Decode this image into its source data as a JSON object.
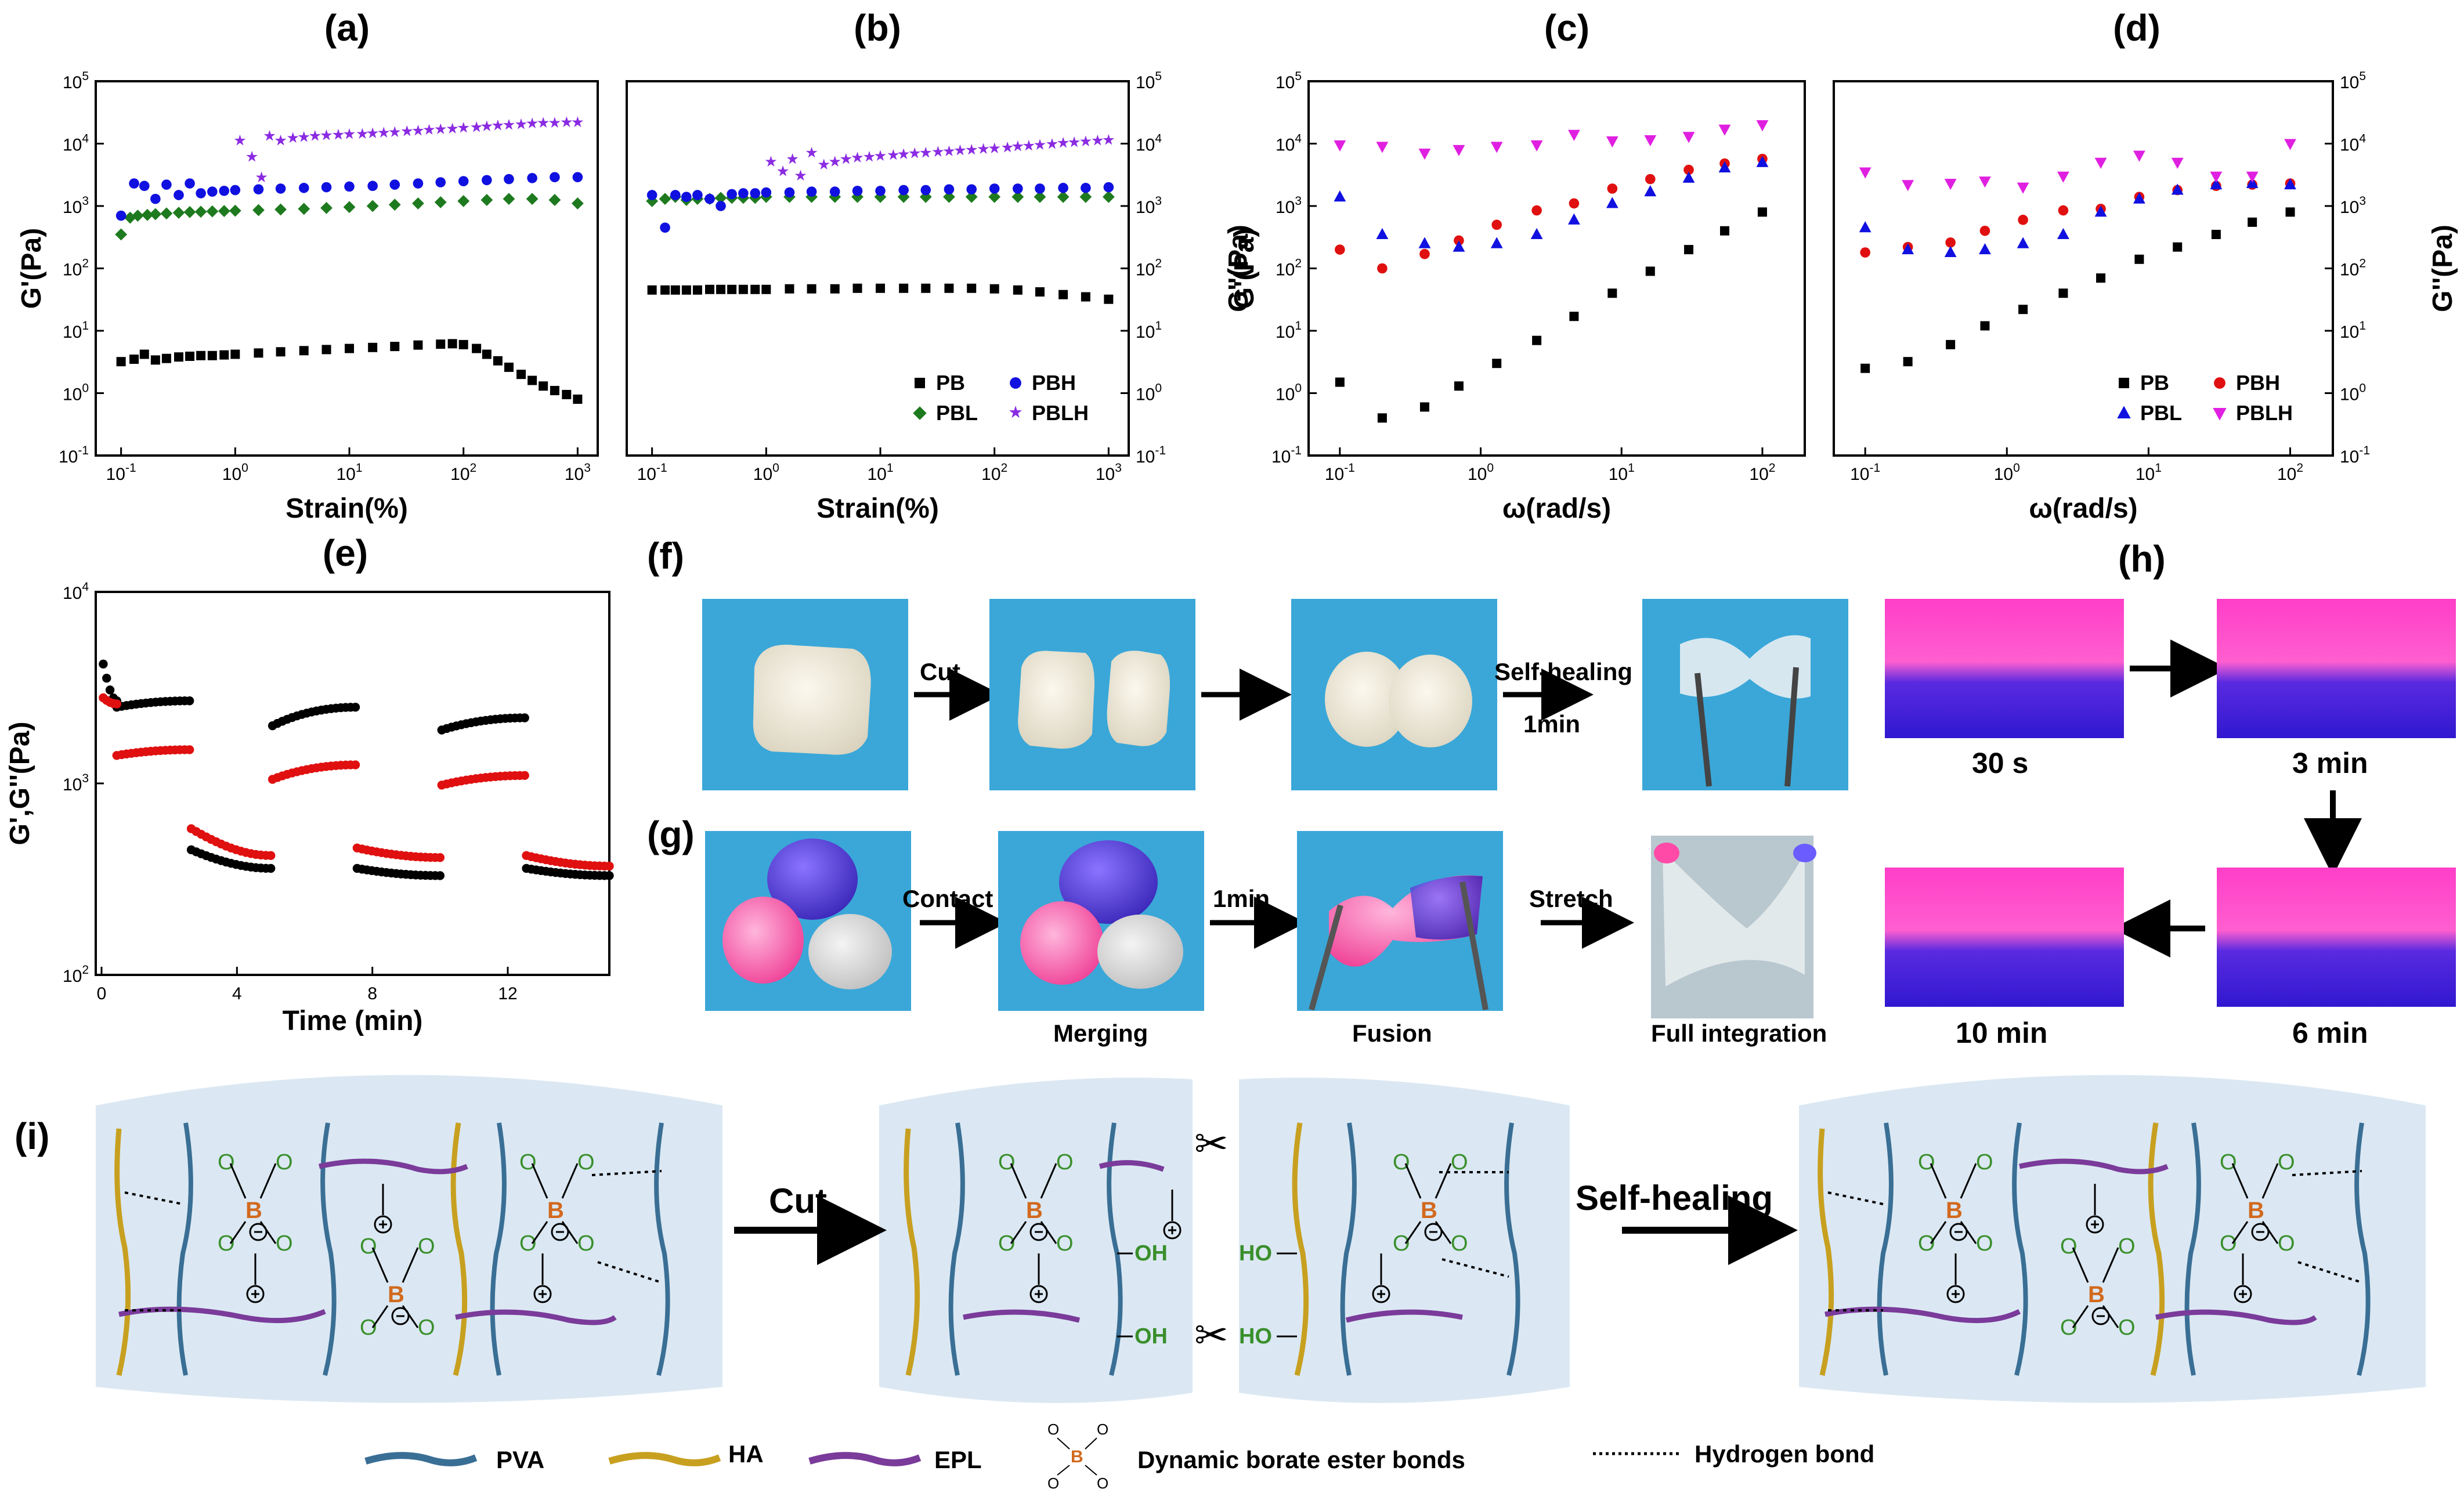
{
  "chart_data": [
    {
      "id": "a",
      "type": "scatter",
      "title": "(a)",
      "xlabel": "Strain(%)",
      "ylabel": "G'(Pa)",
      "xscale": "log",
      "yscale": "log",
      "xlim": [
        0.06,
        1500
      ],
      "ylim": [
        0.1,
        100000
      ],
      "xticks": [
        "10",
        "10",
        "10",
        "10",
        "10"
      ],
      "xtick_exp": [
        "-1",
        "0",
        "1",
        "2",
        "3"
      ],
      "yticks": [
        "10",
        "10",
        "10",
        "10",
        "10",
        "10",
        "10"
      ],
      "ytick_exp": [
        "-1",
        "0",
        "1",
        "2",
        "3",
        "4",
        "5"
      ],
      "series": [
        {
          "name": "PB",
          "marker": "square",
          "color": "#000000",
          "x": [
            0.1,
            0.13,
            0.16,
            0.2,
            0.25,
            0.32,
            0.4,
            0.5,
            0.63,
            0.8,
            1,
            1.6,
            2.5,
            4,
            6.3,
            10,
            16,
            25,
            40,
            63,
            80,
            100,
            130,
            160,
            200,
            250,
            320,
            400,
            500,
            630,
            800,
            1000
          ],
          "y": [
            3.2,
            3.5,
            4.2,
            3.4,
            3.6,
            3.8,
            3.9,
            4.0,
            4.0,
            4.1,
            4.2,
            4.4,
            4.6,
            4.8,
            5.0,
            5.2,
            5.4,
            5.6,
            5.9,
            6.1,
            6.2,
            6.0,
            5.2,
            4.2,
            3.3,
            2.6,
            2.0,
            1.6,
            1.3,
            1.1,
            0.95,
            0.8
          ]
        },
        {
          "name": "PBL",
          "marker": "diamond",
          "color": "#1e7a1e",
          "x": [
            0.1,
            0.12,
            0.14,
            0.17,
            0.2,
            0.25,
            0.32,
            0.4,
            0.5,
            0.63,
            0.8,
            1,
            1.6,
            2.5,
            4,
            6.3,
            10,
            16,
            25,
            40,
            63,
            100,
            160,
            250,
            400,
            630,
            1000
          ],
          "y": [
            350,
            650,
            700,
            720,
            740,
            760,
            780,
            800,
            810,
            820,
            830,
            840,
            860,
            880,
            900,
            930,
            960,
            1000,
            1050,
            1100,
            1150,
            1200,
            1250,
            1300,
            1300,
            1250,
            1100
          ]
        },
        {
          "name": "PBH",
          "marker": "circle",
          "color": "#1010e0",
          "x": [
            0.1,
            0.13,
            0.16,
            0.2,
            0.25,
            0.32,
            0.4,
            0.5,
            0.63,
            0.8,
            1,
            1.6,
            2.5,
            4,
            6.3,
            10,
            16,
            25,
            40,
            63,
            100,
            160,
            250,
            400,
            630,
            1000
          ],
          "y": [
            700,
            2300,
            2100,
            1300,
            2200,
            1500,
            2300,
            1600,
            1700,
            1750,
            1800,
            1850,
            1900,
            1950,
            2000,
            2050,
            2100,
            2200,
            2300,
            2400,
            2500,
            2600,
            2700,
            2800,
            2900,
            2900
          ]
        },
        {
          "name": "PBLH",
          "marker": "star",
          "color": "#8a2be2",
          "x": [
            1.1,
            1.4,
            1.7,
            2,
            2.5,
            3.2,
            4,
            5,
            6.3,
            8,
            10,
            13,
            16,
            20,
            25,
            32,
            40,
            50,
            63,
            80,
            100,
            130,
            160,
            200,
            250,
            320,
            400,
            500,
            630,
            800,
            1000
          ],
          "y": [
            11000,
            6000,
            2800,
            13000,
            11000,
            12000,
            12500,
            13000,
            13200,
            13500,
            13800,
            14000,
            14300,
            14600,
            15000,
            15400,
            15800,
            16200,
            16600,
            17000,
            17500,
            18000,
            18500,
            19000,
            19500,
            20000,
            20500,
            21000,
            21000,
            21500,
            21500
          ]
        }
      ]
    },
    {
      "id": "b",
      "type": "scatter",
      "title": "(b)",
      "xlabel": "Strain(%)",
      "ylabel": "G''(Pa)",
      "yaxis_side": "right",
      "xscale": "log",
      "yscale": "log",
      "xlim": [
        0.06,
        1500
      ],
      "ylim": [
        0.1,
        100000
      ],
      "xticks": [
        "10",
        "10",
        "10",
        "10",
        "10"
      ],
      "xtick_exp": [
        "-1",
        "0",
        "1",
        "2",
        "3"
      ],
      "yticks": [
        "10",
        "10",
        "10",
        "10",
        "10",
        "10",
        "10"
      ],
      "ytick_exp": [
        "-1",
        "0",
        "1",
        "2",
        "3",
        "4",
        "5"
      ],
      "legend": [
        "PB",
        "PBH",
        "PBL",
        "PBLH"
      ],
      "series": [
        {
          "name": "PB",
          "marker": "square",
          "color": "#000000",
          "x": [
            0.1,
            0.13,
            0.16,
            0.2,
            0.25,
            0.32,
            0.4,
            0.5,
            0.63,
            0.8,
            1,
            1.6,
            2.5,
            4,
            6.3,
            10,
            16,
            25,
            40,
            63,
            100,
            160,
            250,
            400,
            630,
            1000
          ],
          "y": [
            45,
            45,
            45,
            45,
            45,
            46,
            46,
            46,
            46,
            46,
            46,
            47,
            47,
            47,
            48,
            48,
            48,
            48,
            48,
            48,
            47,
            45,
            42,
            38,
            35,
            32
          ]
        },
        {
          "name": "PBL",
          "marker": "diamond",
          "color": "#1e7a1e",
          "x": [
            0.1,
            0.13,
            0.16,
            0.2,
            0.25,
            0.32,
            0.4,
            0.5,
            0.63,
            0.8,
            1,
            1.6,
            2.5,
            4,
            6.3,
            10,
            16,
            25,
            40,
            63,
            100,
            160,
            250,
            400,
            630,
            1000
          ],
          "y": [
            1200,
            1300,
            1400,
            1250,
            1300,
            1300,
            1350,
            1350,
            1350,
            1350,
            1400,
            1400,
            1400,
            1400,
            1400,
            1400,
            1400,
            1400,
            1400,
            1400,
            1400,
            1400,
            1400,
            1400,
            1400,
            1400
          ]
        },
        {
          "name": "PBH",
          "marker": "circle",
          "color": "#1010e0",
          "x": [
            0.1,
            0.13,
            0.16,
            0.2,
            0.25,
            0.32,
            0.4,
            0.5,
            0.63,
            0.8,
            1,
            1.6,
            2.5,
            4,
            6.3,
            10,
            16,
            25,
            40,
            63,
            100,
            160,
            250,
            400,
            630,
            1000
          ],
          "y": [
            1500,
            450,
            1500,
            1400,
            1500,
            1300,
            1000,
            1550,
            1600,
            1600,
            1650,
            1650,
            1700,
            1700,
            1750,
            1750,
            1800,
            1800,
            1850,
            1850,
            1900,
            1900,
            1900,
            1950,
            1950,
            2000
          ]
        },
        {
          "name": "PBLH",
          "marker": "star",
          "color": "#8a2be2",
          "x": [
            1.1,
            1.4,
            1.7,
            2,
            2.5,
            3.2,
            4,
            5,
            6.3,
            8,
            10,
            13,
            16,
            20,
            25,
            32,
            40,
            50,
            63,
            80,
            100,
            130,
            160,
            200,
            250,
            320,
            400,
            500,
            630,
            800,
            1000
          ],
          "y": [
            5000,
            3500,
            5500,
            3000,
            7000,
            4500,
            5000,
            5500,
            5800,
            6000,
            6200,
            6400,
            6600,
            6800,
            7000,
            7200,
            7400,
            7600,
            7800,
            8000,
            8200,
            8500,
            8800,
            9000,
            9300,
            9600,
            10000,
            10300,
            10600,
            11000,
            11200
          ]
        }
      ]
    },
    {
      "id": "c",
      "type": "scatter",
      "title": "(c)",
      "xlabel": "ω(rad/s)",
      "ylabel": "G'(Pa)",
      "xscale": "log",
      "yscale": "log",
      "xlim": [
        0.06,
        200
      ],
      "ylim": [
        0.1,
        100000
      ],
      "xticks": [
        "10",
        "10",
        "10",
        "10"
      ],
      "xtick_exp": [
        "-1",
        "0",
        "1",
        "2"
      ],
      "yticks": [
        "10",
        "10",
        "10",
        "10",
        "10",
        "10",
        "10"
      ],
      "ytick_exp": [
        "-1",
        "0",
        "1",
        "2",
        "3",
        "4",
        "5"
      ],
      "series": [
        {
          "name": "PB",
          "marker": "square",
          "color": "#000000",
          "x": [
            0.1,
            0.2,
            0.4,
            0.7,
            1.3,
            2.5,
            4.6,
            8.6,
            16,
            30,
            54,
            100
          ],
          "y": [
            1.5,
            0.4,
            0.6,
            1.3,
            3,
            7,
            17,
            40,
            90,
            200,
            400,
            800
          ]
        },
        {
          "name": "PBH",
          "marker": "circle",
          "color": "#e01010",
          "x": [
            0.1,
            0.2,
            0.4,
            0.7,
            1.3,
            2.5,
            4.6,
            8.6,
            16,
            30,
            54,
            100
          ],
          "y": [
            200,
            100,
            170,
            280,
            500,
            850,
            1100,
            1900,
            2700,
            3800,
            4800,
            5700
          ]
        },
        {
          "name": "PBL",
          "marker": "triangle-up",
          "color": "#1010e0",
          "x": [
            0.1,
            0.2,
            0.4,
            0.7,
            1.3,
            2.5,
            4.6,
            8.6,
            16,
            30,
            54,
            100
          ],
          "y": [
            1400,
            350,
            250,
            220,
            250,
            350,
            600,
            1100,
            1700,
            2800,
            4100,
            5000
          ]
        },
        {
          "name": "PBLH",
          "marker": "triangle-down",
          "color": "#e020e0",
          "x": [
            0.1,
            0.2,
            0.4,
            0.7,
            1.3,
            2.5,
            4.6,
            8.6,
            16,
            30,
            54,
            100
          ],
          "y": [
            9500,
            9000,
            7000,
            8000,
            9000,
            9500,
            14000,
            11000,
            11500,
            13000,
            17000,
            20000
          ]
        }
      ]
    },
    {
      "id": "d",
      "type": "scatter",
      "title": "(d)",
      "xlabel": "ω(rad/s)",
      "ylabel": "G''(Pa)",
      "yaxis_side": "right",
      "xscale": "log",
      "yscale": "log",
      "xlim": [
        0.06,
        200
      ],
      "ylim": [
        0.1,
        100000
      ],
      "xticks": [
        "10",
        "10",
        "10",
        "10"
      ],
      "xtick_exp": [
        "-1",
        "0",
        "1",
        "2"
      ],
      "yticks": [
        "10",
        "10",
        "10",
        "10",
        "10",
        "10",
        "10"
      ],
      "ytick_exp": [
        "-1",
        "0",
        "1",
        "2",
        "3",
        "4",
        "5"
      ],
      "legend": [
        "PB",
        "PBH",
        "PBL",
        "PBLH"
      ],
      "series": [
        {
          "name": "PB",
          "marker": "square",
          "color": "#000000",
          "x": [
            0.1,
            0.2,
            0.4,
            0.7,
            1.3,
            2.5,
            4.6,
            8.6,
            16,
            30,
            54,
            100
          ],
          "y": [
            2.5,
            3.2,
            6,
            12,
            22,
            40,
            70,
            140,
            220,
            350,
            550,
            800
          ]
        },
        {
          "name": "PBH",
          "marker": "circle",
          "color": "#e01010",
          "x": [
            0.1,
            0.2,
            0.4,
            0.7,
            1.3,
            2.5,
            4.6,
            8.6,
            16,
            30,
            54,
            100
          ],
          "y": [
            180,
            220,
            260,
            400,
            600,
            850,
            900,
            1400,
            1800,
            2100,
            2200,
            2300
          ]
        },
        {
          "name": "PBL",
          "marker": "triangle-up",
          "color": "#1010e0",
          "x": [
            0.1,
            0.2,
            0.4,
            0.7,
            1.3,
            2.5,
            4.6,
            8.6,
            16,
            30,
            54,
            100
          ],
          "y": [
            450,
            200,
            180,
            200,
            250,
            350,
            800,
            1300,
            1800,
            2200,
            2300,
            2200
          ]
        },
        {
          "name": "PBLH",
          "marker": "triangle-down",
          "color": "#e020e0",
          "x": [
            0.1,
            0.2,
            0.4,
            0.7,
            1.3,
            2.5,
            4.6,
            8.6,
            16,
            30,
            54,
            100
          ],
          "y": [
            3500,
            2200,
            2300,
            2500,
            2000,
            3000,
            5000,
            6500,
            5000,
            3000,
            3000,
            10000
          ]
        }
      ]
    },
    {
      "id": "e",
      "type": "scatter",
      "title": "(e)",
      "xlabel": "Time (min)",
      "ylabel": "G',G''(Pa)",
      "xscale": "linear",
      "yscale": "log",
      "xlim": [
        0,
        15
      ],
      "ylim": [
        100,
        10000
      ],
      "xticks": [
        "0",
        "4",
        "8",
        "12"
      ],
      "yticks": [
        "10",
        "10",
        "10"
      ],
      "ytick_exp": [
        "2",
        "3",
        "4"
      ],
      "segments": [
        {
          "t0": 0.05,
          "t1": 0.45,
          "black": [
            4200,
            2700
          ],
          "red": [
            2800,
            2600
          ]
        },
        {
          "t0": 0.45,
          "t1": 2.6,
          "black": [
            2500,
            2700
          ],
          "red": [
            1400,
            1500
          ]
        },
        {
          "t0": 2.65,
          "t1": 5.0,
          "black": [
            450,
            360
          ],
          "red": [
            580,
            420
          ]
        },
        {
          "t0": 5.05,
          "t1": 7.5,
          "black": [
            2000,
            2500
          ],
          "red": [
            1050,
            1250
          ]
        },
        {
          "t0": 7.55,
          "t1": 10.0,
          "black": [
            360,
            330
          ],
          "red": [
            460,
            410
          ]
        },
        {
          "t0": 10.05,
          "t1": 12.5,
          "black": [
            1900,
            2200
          ],
          "red": [
            980,
            1100
          ]
        },
        {
          "t0": 12.55,
          "t1": 15.0,
          "black": [
            360,
            330
          ],
          "red": [
            420,
            370
          ]
        }
      ]
    }
  ],
  "panels": {
    "f": {
      "label": "(f)",
      "cut": "Cut",
      "self_healing": "Self-healing",
      "time": "1min"
    },
    "g": {
      "label": "(g)",
      "contact": "Contact",
      "time": "1min",
      "stretch": "Stretch",
      "merging": "Merging",
      "fusion": "Fusion",
      "full": "Full integration"
    },
    "h": {
      "label": "(h)",
      "t1": "30 s",
      "t2": "3 min",
      "t3": "6 min",
      "t4": "10 min"
    },
    "i": {
      "label": "(i)",
      "cut": "Cut",
      "self_healing": "Self-healing",
      "oh": "OH",
      "ho": "HO"
    }
  },
  "legend_bottom": {
    "pva": "PVA",
    "ha": "HA",
    "epl": "EPL",
    "borate": "Dynamic borate ester bonds",
    "hbond": "Hydrogen bond"
  },
  "atoms": {
    "o": "O",
    "b": "B"
  },
  "colors": {
    "pva": "#3a6f95",
    "ha": "#c8a020",
    "epl": "#7a3b9a",
    "photo_bg": "#3aa7d8",
    "diagram_bg": "#dbe8f3"
  }
}
